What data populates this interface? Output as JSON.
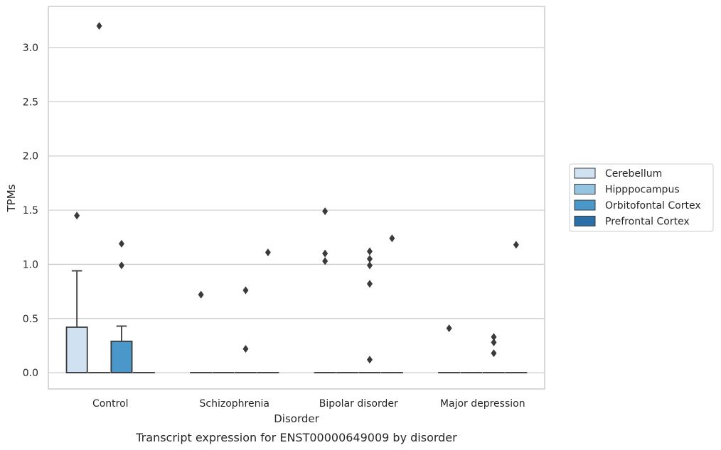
{
  "chart_data": {
    "type": "box",
    "caption": "Transcript expression for ENST00000649009 by disorder",
    "xlabel": "Disorder",
    "ylabel": "TPMs",
    "ylim": [
      -0.15,
      3.38
    ],
    "yticks": [
      0.0,
      0.5,
      1.0,
      1.5,
      2.0,
      2.5,
      3.0
    ],
    "ytick_labels": [
      "0.0",
      "0.5",
      "1.0",
      "1.5",
      "2.0",
      "2.5",
      "3.0"
    ],
    "grid": "horizontal",
    "legend_position": "right",
    "categories": [
      "Control",
      "Schizophrenia",
      "Bipolar disorder",
      "Major depression"
    ],
    "series": [
      {
        "name": "Cerebellum",
        "color": "#d0e1f2",
        "boxes": [
          {
            "q1": 0.0,
            "median": 0.0,
            "q3": 0.42,
            "whisker_low": 0.0,
            "whisker_high": 0.94,
            "outliers": [
              1.45
            ]
          },
          {
            "q1": 0.0,
            "median": 0.0,
            "q3": 0.0,
            "whisker_low": 0.0,
            "whisker_high": 0.0,
            "outliers": [
              0.72
            ]
          },
          {
            "q1": 0.0,
            "median": 0.0,
            "q3": 0.0,
            "whisker_low": 0.0,
            "whisker_high": 0.0,
            "outliers": [
              1.49,
              1.1,
              1.03
            ]
          },
          {
            "q1": 0.0,
            "median": 0.0,
            "q3": 0.0,
            "whisker_low": 0.0,
            "whisker_high": 0.0,
            "outliers": [
              0.41
            ]
          }
        ]
      },
      {
        "name": "Hipppocampus",
        "color": "#94c4df",
        "boxes": [
          {
            "q1": 0.0,
            "median": 0.0,
            "q3": 0.0,
            "whisker_low": 0.0,
            "whisker_high": 0.0,
            "outliers": [
              3.2
            ]
          },
          {
            "q1": 0.0,
            "median": 0.0,
            "q3": 0.0,
            "whisker_low": 0.0,
            "whisker_high": 0.0,
            "outliers": []
          },
          {
            "q1": 0.0,
            "median": 0.0,
            "q3": 0.0,
            "whisker_low": 0.0,
            "whisker_high": 0.0,
            "outliers": []
          },
          {
            "q1": 0.0,
            "median": 0.0,
            "q3": 0.0,
            "whisker_low": 0.0,
            "whisker_high": 0.0,
            "outliers": []
          }
        ]
      },
      {
        "name": "Orbitofontal Cortex",
        "color": "#4a98c9",
        "boxes": [
          {
            "q1": 0.0,
            "median": 0.0,
            "q3": 0.29,
            "whisker_low": 0.0,
            "whisker_high": 0.43,
            "outliers": [
              1.19,
              0.99
            ]
          },
          {
            "q1": 0.0,
            "median": 0.0,
            "q3": 0.0,
            "whisker_low": 0.0,
            "whisker_high": 0.0,
            "outliers": [
              0.76,
              0.22
            ]
          },
          {
            "q1": 0.0,
            "median": 0.0,
            "q3": 0.0,
            "whisker_low": 0.0,
            "whisker_high": 0.0,
            "outliers": [
              1.12,
              0.99,
              1.05,
              0.82,
              0.12
            ]
          },
          {
            "q1": 0.0,
            "median": 0.0,
            "q3": 0.0,
            "whisker_low": 0.0,
            "whisker_high": 0.0,
            "outliers": [
              0.33,
              0.28,
              0.18
            ]
          }
        ]
      },
      {
        "name": "Prefrontal Cortex",
        "color": "#2b6ea8",
        "boxes": [
          {
            "q1": 0.0,
            "median": 0.0,
            "q3": 0.0,
            "whisker_low": 0.0,
            "whisker_high": 0.0,
            "outliers": []
          },
          {
            "q1": 0.0,
            "median": 0.0,
            "q3": 0.0,
            "whisker_low": 0.0,
            "whisker_high": 0.0,
            "outliers": [
              1.11
            ]
          },
          {
            "q1": 0.0,
            "median": 0.0,
            "q3": 0.0,
            "whisker_low": 0.0,
            "whisker_high": 0.0,
            "outliers": [
              1.24
            ]
          },
          {
            "q1": 0.0,
            "median": 0.0,
            "q3": 0.0,
            "whisker_low": 0.0,
            "whisker_high": 0.0,
            "outliers": [
              1.18
            ]
          }
        ]
      }
    ],
    "colors": {
      "grid": "#cccccc",
      "frame": "#cccccc",
      "box_edge": "#3a3a3a",
      "outlier": "#3a3a3a",
      "legend_border": "#cccccc"
    }
  }
}
